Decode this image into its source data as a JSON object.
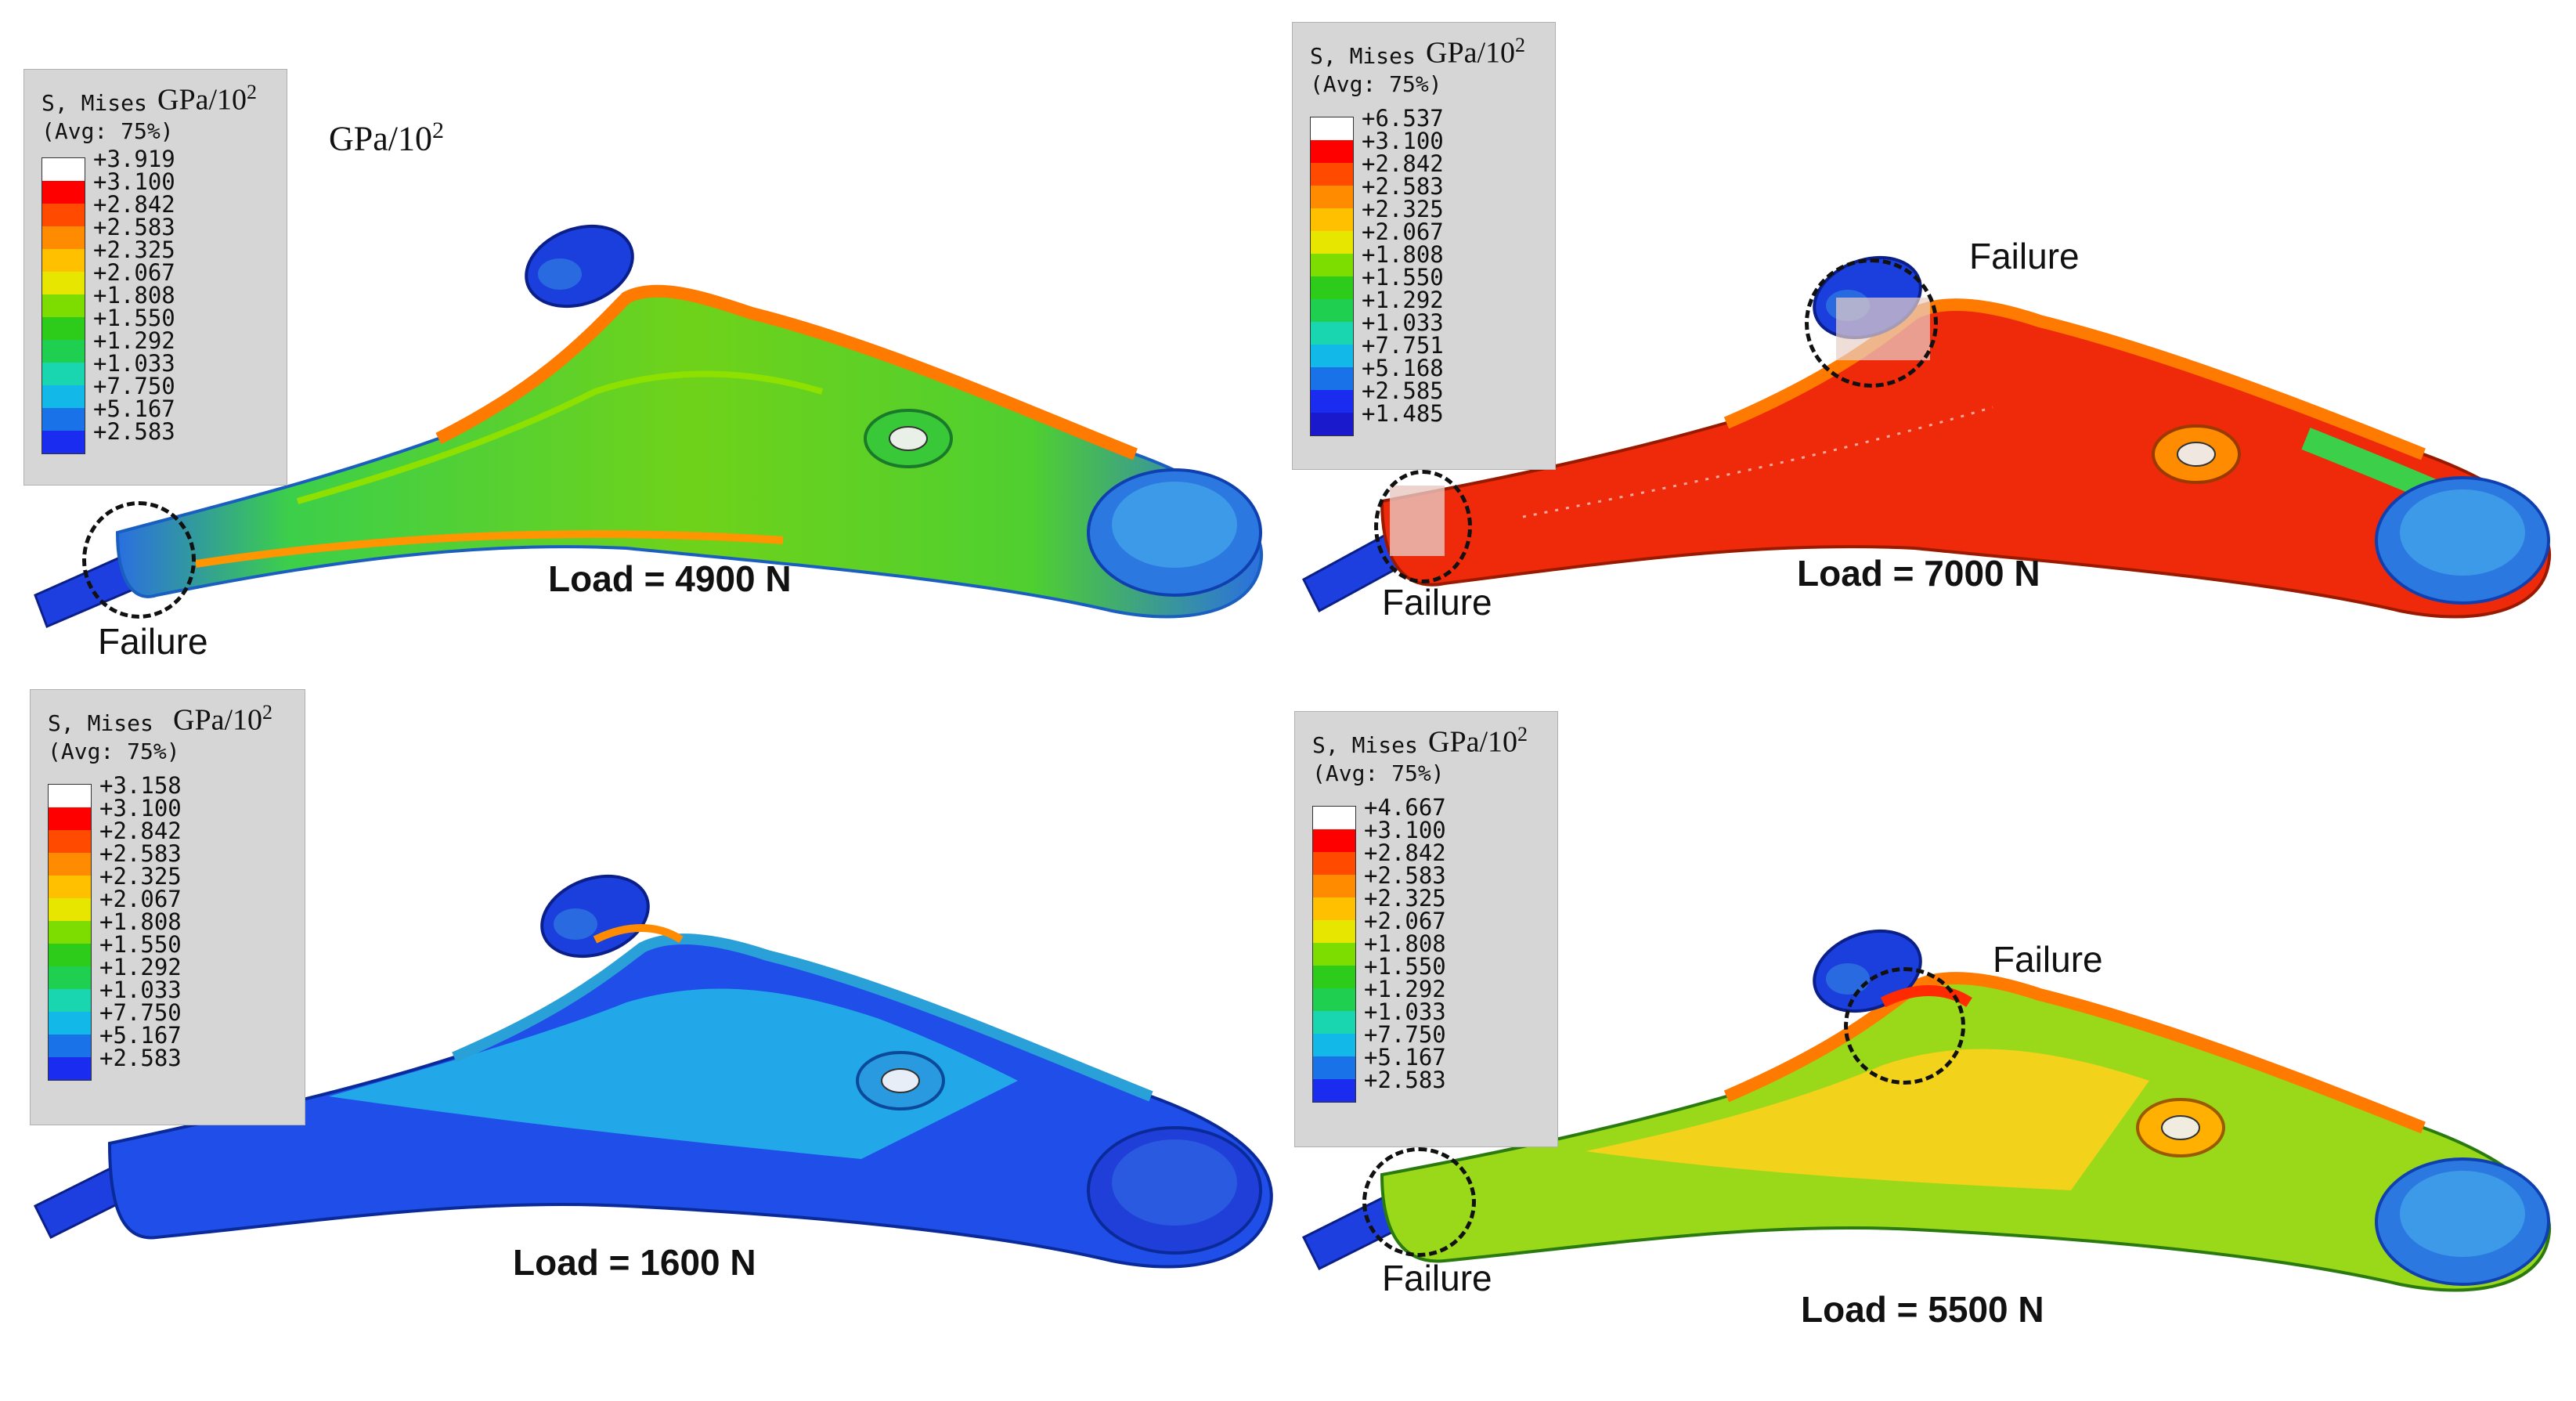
{
  "panels": [
    {
      "id": "top-left",
      "legend": {
        "title": "S, Mises",
        "avg": "(Avg: 75%)",
        "unit": "GPa/10",
        "unit_exp": "2",
        "values": [
          "+3.919",
          "+3.100",
          "+2.842",
          "+2.583",
          "+2.325",
          "+2.067",
          "+1.808",
          "+1.550",
          "+1.292",
          "+1.033",
          "+7.750",
          "+5.167",
          "+2.583"
        ]
      },
      "extra_unit": "GPa/10",
      "extra_unit_exp": "2",
      "load": "Load = 4900 N",
      "failures": [
        "Failure"
      ]
    },
    {
      "id": "top-right",
      "legend": {
        "title": "S, Mises",
        "avg": "(Avg: 75%)",
        "unit": "GPa/10",
        "unit_exp": "2",
        "values": [
          "+6.537",
          "+3.100",
          "+2.842",
          "+2.583",
          "+2.325",
          "+2.067",
          "+1.808",
          "+1.550",
          "+1.292",
          "+1.033",
          "+7.751",
          "+5.168",
          "+2.585",
          "+1.485"
        ]
      },
      "load": "Load = 7000 N",
      "failures": [
        "Failure",
        "Failure"
      ]
    },
    {
      "id": "bottom-left",
      "legend": {
        "title": "S, Mises",
        "avg": "(Avg: 75%)",
        "unit": "GPa/10",
        "unit_exp": "2",
        "values": [
          "+3.158",
          "+3.100",
          "+2.842",
          "+2.583",
          "+2.325",
          "+2.067",
          "+1.808",
          "+1.550",
          "+1.292",
          "+1.033",
          "+7.750",
          "+5.167",
          "+2.583"
        ]
      },
      "load": "Load = 1600 N",
      "failures": []
    },
    {
      "id": "bottom-right",
      "legend": {
        "title": "S, Mises",
        "avg": "(Avg: 75%)",
        "unit": "GPa/10",
        "unit_exp": "2",
        "values": [
          "+4.667",
          "+3.100",
          "+2.842",
          "+2.583",
          "+2.325",
          "+2.067",
          "+1.808",
          "+1.550",
          "+1.292",
          "+1.033",
          "+7.750",
          "+5.167",
          "+2.583"
        ]
      },
      "load": "Load = 5500 N",
      "failures": [
        "Failure",
        "Failure"
      ]
    }
  ],
  "colormap": [
    "#ffffff",
    "#ff0000",
    "#ff4a00",
    "#ff8c00",
    "#ffc000",
    "#e6e600",
    "#7ddc00",
    "#2ecc1a",
    "#1ecf50",
    "#19d6b0",
    "#12b8e8",
    "#1a72e8",
    "#1a2cf0",
    "#1a1acc"
  ]
}
